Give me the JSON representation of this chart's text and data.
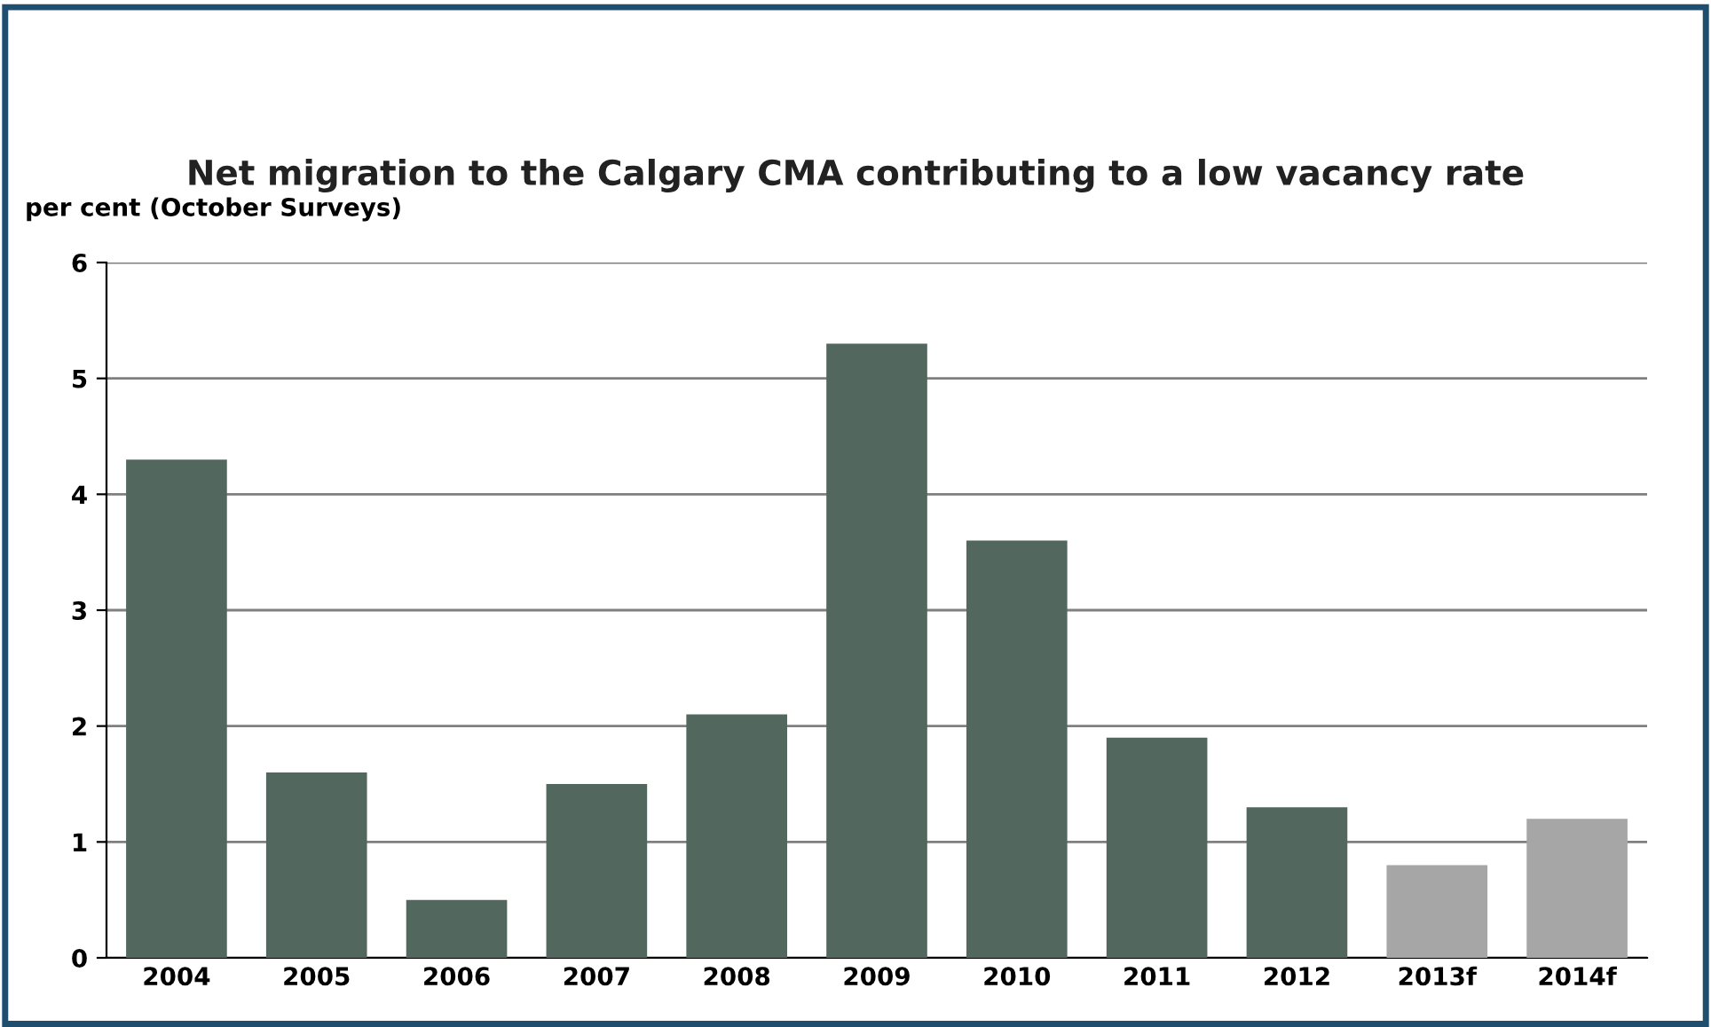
{
  "chart_data": {
    "type": "bar",
    "title": "Net migration to the Calgary CMA contributing to a low vacancy rate",
    "ylabel": "per cent (October Surveys)",
    "categories": [
      "2004",
      "2005",
      "2006",
      "2007",
      "2008",
      "2009",
      "2010",
      "2011",
      "2012",
      "2013f",
      "2014f"
    ],
    "values": [
      4.3,
      1.6,
      0.5,
      1.5,
      2.1,
      5.3,
      3.6,
      1.9,
      1.3,
      0.8,
      1.2
    ],
    "colors": [
      "#52675e",
      "#52675e",
      "#52675e",
      "#52675e",
      "#52675e",
      "#52675e",
      "#52675e",
      "#52675e",
      "#52675e",
      "#a6a6a6",
      "#a6a6a6"
    ],
    "ylim": [
      0,
      6
    ],
    "yticks": [
      0,
      1,
      2,
      3,
      4,
      5,
      6
    ],
    "grid": "y",
    "legend": false
  }
}
